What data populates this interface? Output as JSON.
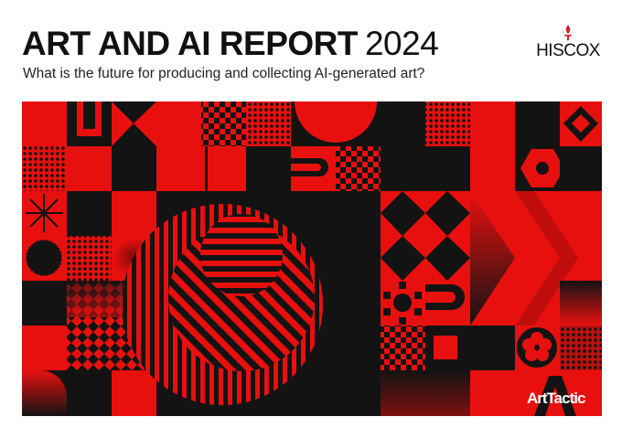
{
  "header": {
    "title_bold": "ART AND AI REPORT",
    "title_year": "2024",
    "subtitle": "What is the future for producing and collecting AI-generated art?"
  },
  "logos": {
    "hiscox": "HISCOX",
    "arttactic": "ArtTactic"
  },
  "colors": {
    "red": "#e8100f",
    "black": "#131313"
  },
  "icons": {
    "hiscox_mark": "fleur-de-lis-icon"
  }
}
